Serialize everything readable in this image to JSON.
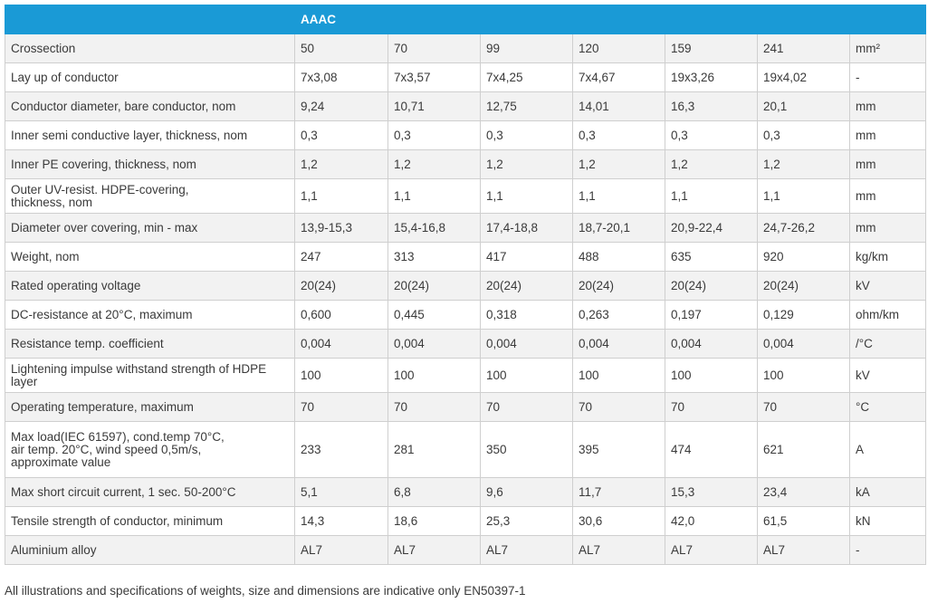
{
  "table": {
    "header": [
      "",
      "AAAC",
      "",
      "",
      "",
      "",
      "",
      ""
    ],
    "rows": [
      [
        "Crossection",
        "50",
        "70",
        "99",
        "120",
        "159",
        "241",
        "mm²"
      ],
      [
        "Lay up of conductor",
        "7x3,08",
        "7x3,57",
        "7x4,25",
        "7x4,67",
        "19x3,26",
        "19x4,02",
        "-"
      ],
      [
        "Conductor diameter, bare conductor, nom",
        "9,24",
        "10,71",
        "12,75",
        "14,01",
        "16,3",
        "20,1",
        "mm"
      ],
      [
        "Inner semi conductive layer, thickness, nom",
        "0,3",
        "0,3",
        "0,3",
        "0,3",
        "0,3",
        "0,3",
        "mm"
      ],
      [
        "Inner PE covering, thickness, nom",
        "1,2",
        "1,2",
        "1,2",
        "1,2",
        "1,2",
        "1,2",
        "mm"
      ],
      [
        "Outer UV-resist. HDPE-covering,\nthickness, nom",
        "1,1",
        "1,1",
        "1,1",
        "1,1",
        "1,1",
        "1,1",
        "mm"
      ],
      [
        "Diameter over covering, min - max",
        "13,9-15,3",
        "15,4-16,8",
        "17,4-18,8",
        "18,7-20,1",
        "20,9-22,4",
        "24,7-26,2",
        "mm"
      ],
      [
        "Weight, nom",
        "247",
        "313",
        "417",
        "488",
        "635",
        "920",
        "kg/km"
      ],
      [
        "Rated operating voltage",
        "20(24)",
        "20(24)",
        "20(24)",
        "20(24)",
        "20(24)",
        "20(24)",
        "kV"
      ],
      [
        "DC-resistance at 20°C, maximum",
        "0,600",
        "0,445",
        "0,318",
        "0,263",
        "0,197",
        "0,129",
        "ohm/km"
      ],
      [
        "Resistance temp. coefficient",
        "0,004",
        "0,004",
        "0,004",
        "0,004",
        "0,004",
        "0,004",
        "/°C"
      ],
      [
        "Lightening impulse withstand strength of HDPE\nlayer",
        "100",
        "100",
        "100",
        "100",
        "100",
        "100",
        "kV"
      ],
      [
        "Operating temperature, maximum",
        "70",
        "70",
        "70",
        "70",
        "70",
        "70",
        "°C"
      ],
      [
        "Max load(IEC 61597), cond.temp 70°C,\nair temp. 20°C,  wind speed 0,5m/s,\napproximate value",
        "233",
        "281",
        "350",
        "395",
        "474",
        "621",
        "A"
      ],
      [
        "Max short circuit current, 1 sec. 50-200°C",
        "5,1",
        "6,8",
        "9,6",
        "11,7",
        "15,3",
        "23,4",
        "kA"
      ],
      [
        "Tensile strength of conductor, minimum",
        "14,3",
        "18,6",
        "25,3",
        "30,6",
        "42,0",
        "61,5",
        "kN"
      ],
      [
        "Aluminium alloy",
        "AL7",
        "AL7",
        "AL7",
        "AL7",
        "AL7",
        "AL7",
        "-"
      ]
    ]
  },
  "footnote": "All illustrations and specifications of weights, size and dimensions are indicative only EN50397-1",
  "colors": {
    "header_bg": "#1a9ad6",
    "header_text": "#ffffff",
    "stripe": "#f2f2f2",
    "border": "#cfcfcf"
  }
}
